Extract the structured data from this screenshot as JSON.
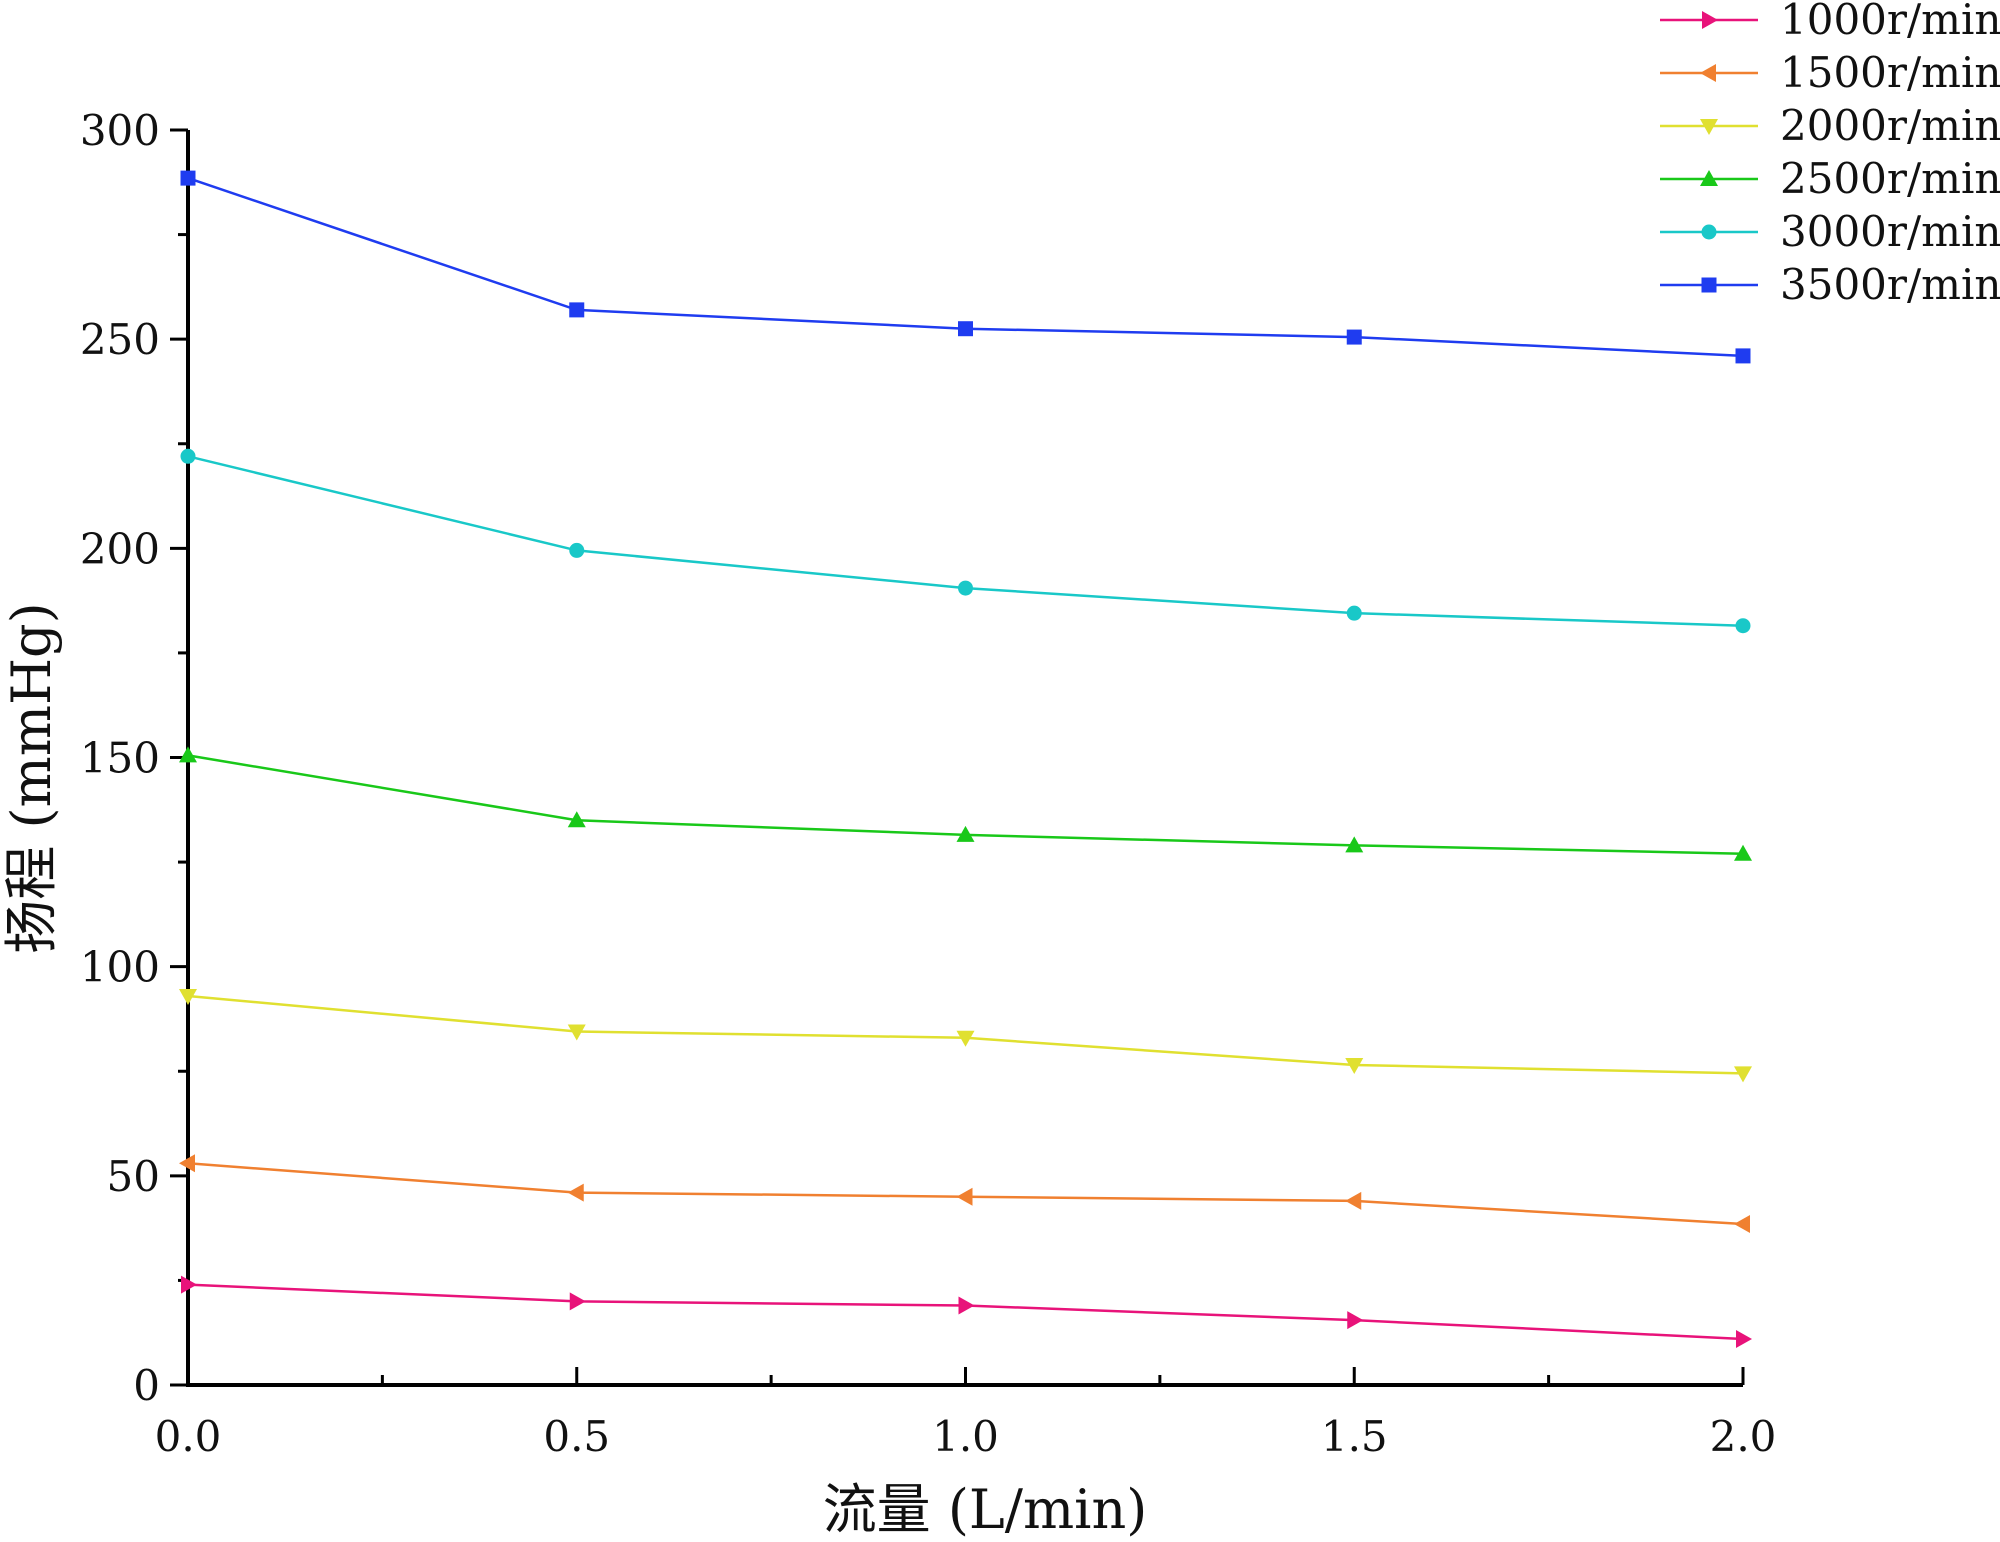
{
  "chart_data": {
    "type": "line",
    "title": "",
    "xlabel": "流量 (L/min)",
    "ylabel": "扬程 (mmHg)",
    "xlim": [
      0,
      2.0
    ],
    "ylim": [
      0,
      300
    ],
    "x": [
      0.0,
      0.5,
      1.0,
      1.5,
      2.0
    ],
    "x_tick_values": [
      0.0,
      0.5,
      1.0,
      1.5,
      2.0
    ],
    "x_tick_labels": [
      "0.0",
      "0.5",
      "1.0",
      "1.5",
      "2.0"
    ],
    "x_minor_ticks": [
      0.25,
      0.75,
      1.25,
      1.75
    ],
    "y_tick_values": [
      0,
      50,
      100,
      150,
      200,
      250,
      300
    ],
    "y_tick_labels": [
      "0",
      "50",
      "100",
      "150",
      "200",
      "250",
      "300"
    ],
    "y_minor_ticks": [
      25,
      75,
      125,
      175,
      225,
      275
    ],
    "grid": false,
    "legend_position": "top-right",
    "series": [
      {
        "name": "1000r/min",
        "color": "#e8137a",
        "marker": "triangle-right",
        "values": [
          24,
          20,
          19,
          15.5,
          11
        ]
      },
      {
        "name": "1500r/min",
        "color": "#f08030",
        "marker": "triangle-left",
        "values": [
          53,
          46,
          45,
          44,
          38.5
        ]
      },
      {
        "name": "2000r/min",
        "color": "#e0e030",
        "marker": "triangle-down",
        "values": [
          93,
          84.5,
          83,
          76.5,
          74.5
        ]
      },
      {
        "name": "2500r/min",
        "color": "#19c819",
        "marker": "triangle-up",
        "values": [
          150.5,
          135,
          131.5,
          129,
          127
        ]
      },
      {
        "name": "3000r/min",
        "color": "#19c8c8",
        "marker": "circle",
        "values": [
          222,
          199.5,
          190.5,
          184.5,
          181.5
        ]
      },
      {
        "name": "3500r/min",
        "color": "#1f3cf0",
        "marker": "square",
        "values": [
          288.5,
          257,
          252.5,
          250.5,
          246
        ]
      }
    ]
  }
}
